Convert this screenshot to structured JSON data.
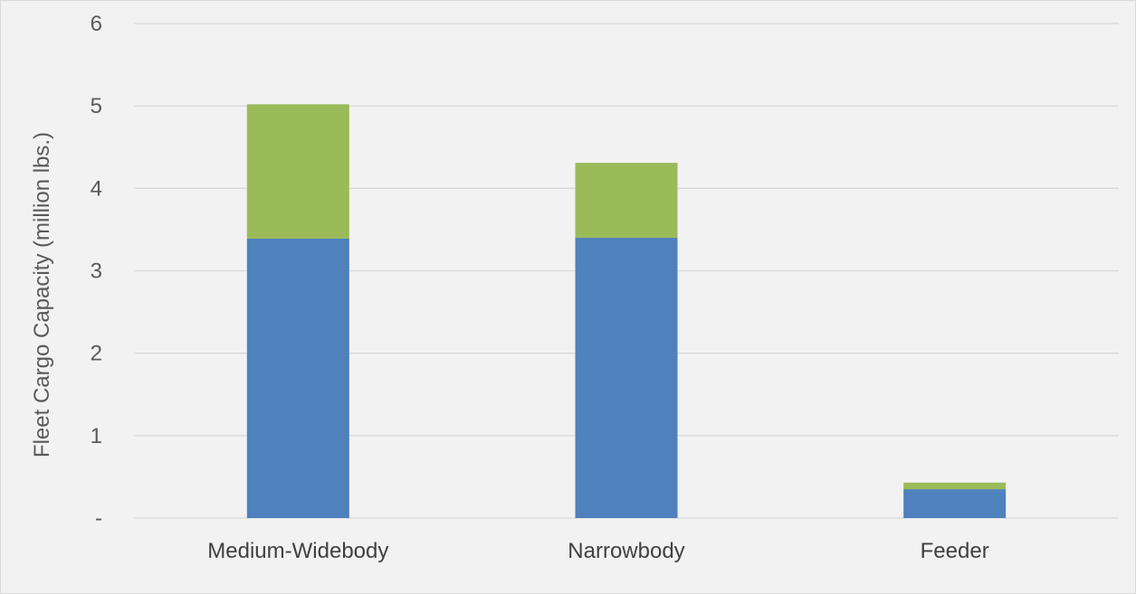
{
  "chart_data": {
    "type": "bar",
    "stacked": true,
    "title": "",
    "xlabel": "",
    "ylabel": "Fleet Cargo Capacity (million lbs.)",
    "ylim": [
      0,
      6
    ],
    "yticks": [
      {
        "value": 0,
        "label": "-"
      },
      {
        "value": 1,
        "label": "1"
      },
      {
        "value": 2,
        "label": "2"
      },
      {
        "value": 3,
        "label": "3"
      },
      {
        "value": 4,
        "label": "4"
      },
      {
        "value": 5,
        "label": "5"
      },
      {
        "value": 6,
        "label": "6"
      }
    ],
    "categories": [
      "Medium-Widebody",
      "Narrowbody",
      "Feeder"
    ],
    "series": [
      {
        "values": [
          3.39,
          3.4,
          0.35
        ],
        "color": "#4f81bd"
      },
      {
        "values": [
          1.63,
          0.91,
          0.08
        ],
        "color": "#9bbb59"
      }
    ],
    "grid": true,
    "legend": "none"
  }
}
